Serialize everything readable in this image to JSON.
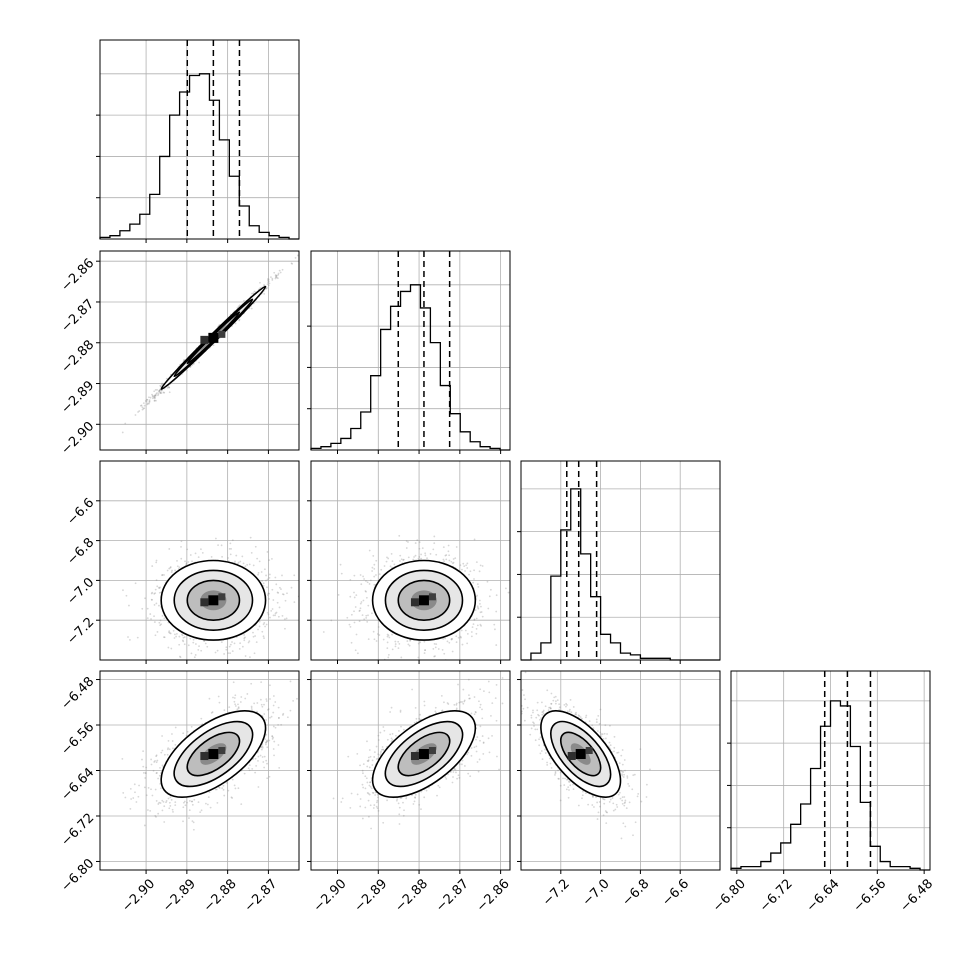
{
  "chart_data": {
    "type": "corner",
    "n_params": 4,
    "colors": {
      "line": "#000000",
      "grid": "#b0b0b0",
      "points": "#8c8c8c",
      "quantile": "#000000"
    },
    "grid": true,
    "params": [
      {
        "range": [
          -2.9113,
          -2.8625
        ],
        "ticks": [
          -2.9,
          -2.89,
          -2.88,
          -2.87
        ],
        "tick_labels": [
          "−2.90",
          "−2.89",
          "−2.88",
          "−2.87"
        ]
      },
      {
        "range": [
          -2.9065,
          -2.8577
        ],
        "ticks": [
          -2.9,
          -2.89,
          -2.88,
          -2.87,
          -2.86
        ],
        "tick_labels": [
          "−2.90",
          "−2.89",
          "−2.88",
          "−2.87",
          "−2.86"
        ]
      },
      {
        "range": [
          -7.4,
          -6.4
        ],
        "ticks": [
          -7.2,
          -7.0,
          -6.8,
          -6.6
        ],
        "tick_labels": [
          "−7.2",
          "−7.0",
          "−6.8",
          "−6.6"
        ]
      },
      {
        "range": [
          -6.81,
          -6.47
        ],
        "ticks": [
          -6.8,
          -6.72,
          -6.64,
          -6.56,
          -6.48
        ],
        "tick_labels": [
          "−6.80",
          "−6.72",
          "−6.64",
          "−6.56",
          "−6.48"
        ]
      }
    ],
    "y_axes": [
      null,
      {
        "range": [
          -2.9063,
          -2.8575
        ],
        "ticks": [
          -2.86,
          -2.87,
          -2.88,
          -2.89,
          -2.9
        ],
        "tick_labels": [
          "−2.86",
          "−2.87",
          "−2.88",
          "−2.89",
          "−2.90"
        ]
      },
      {
        "range": [
          -7.4,
          -6.4
        ],
        "ticks": [
          -6.6,
          -6.8,
          -7.0,
          -7.2
        ],
        "tick_labels": [
          "−6.6",
          "−6.8",
          "−7.0",
          "−7.2"
        ]
      },
      {
        "range": [
          -6.815,
          -6.465
        ],
        "ticks": [
          -6.48,
          -6.56,
          -6.64,
          -6.72,
          -6.8
        ],
        "tick_labels": [
          "−6.48",
          "−6.56",
          "−6.64",
          "−6.72",
          "−6.80"
        ]
      }
    ],
    "histograms": [
      {
        "bins": 20,
        "counts": [
          0.01,
          0.02,
          0.05,
          0.09,
          0.15,
          0.27,
          0.5,
          0.75,
          0.89,
          0.99,
          1.0,
          0.84,
          0.6,
          0.38,
          0.2,
          0.08,
          0.04,
          0.02,
          0.01,
          0.0
        ],
        "quantiles": [
          -2.8899,
          -2.8835,
          -2.8771
        ],
        "ymax_frac": 0.83
      },
      {
        "bins": 20,
        "counts": [
          0.01,
          0.02,
          0.04,
          0.07,
          0.13,
          0.23,
          0.45,
          0.73,
          0.87,
          0.96,
          1.0,
          0.86,
          0.65,
          0.39,
          0.22,
          0.11,
          0.05,
          0.02,
          0.01,
          0.0
        ],
        "quantiles": [
          -2.8851,
          -2.8788,
          -2.8725
        ],
        "ymax_frac": 0.83
      },
      {
        "bins": 20,
        "counts": [
          0.0,
          0.04,
          0.1,
          0.49,
          0.76,
          1.0,
          0.62,
          0.37,
          0.15,
          0.1,
          0.04,
          0.03,
          0.01,
          0.01,
          0.01,
          0.0,
          0.0,
          0.0,
          0.0,
          0.0
        ],
        "quantiles": [
          -7.17,
          -7.11,
          -7.02
        ],
        "ymax_frac": 0.86
      },
      {
        "bins": 20,
        "counts": [
          0.01,
          0.02,
          0.02,
          0.05,
          0.1,
          0.16,
          0.27,
          0.39,
          0.6,
          0.85,
          1.0,
          0.97,
          0.73,
          0.4,
          0.14,
          0.05,
          0.02,
          0.02,
          0.01,
          0.0
        ],
        "quantiles": [
          -6.6499,
          -6.6111,
          -6.5717
        ],
        "ymax_frac": 0.85
      }
    ],
    "pairs": [
      {
        "row": 1,
        "col": 0,
        "mean": [
          -2.8835,
          -2.8788
        ],
        "sd": [
          0.0064,
          0.0063
        ],
        "rho": 0.995
      },
      {
        "row": 2,
        "col": 0,
        "mean": [
          -2.8835,
          -7.1
        ],
        "sd": [
          0.0064,
          0.1
        ],
        "rho": 0.0
      },
      {
        "row": 2,
        "col": 1,
        "mean": [
          -2.8788,
          -7.1
        ],
        "sd": [
          0.0063,
          0.1
        ],
        "rho": 0.0
      },
      {
        "row": 3,
        "col": 0,
        "mean": [
          -2.8835,
          -6.611
        ],
        "sd": [
          0.0064,
          0.038
        ],
        "rho": 0.6
      },
      {
        "row": 3,
        "col": 1,
        "mean": [
          -2.8788,
          -6.611
        ],
        "sd": [
          0.0063,
          0.038
        ],
        "rho": 0.6
      },
      {
        "row": 3,
        "col": 2,
        "mean": [
          -7.1,
          -6.611
        ],
        "sd": [
          0.1,
          0.038
        ],
        "rho": -0.62
      }
    ]
  }
}
